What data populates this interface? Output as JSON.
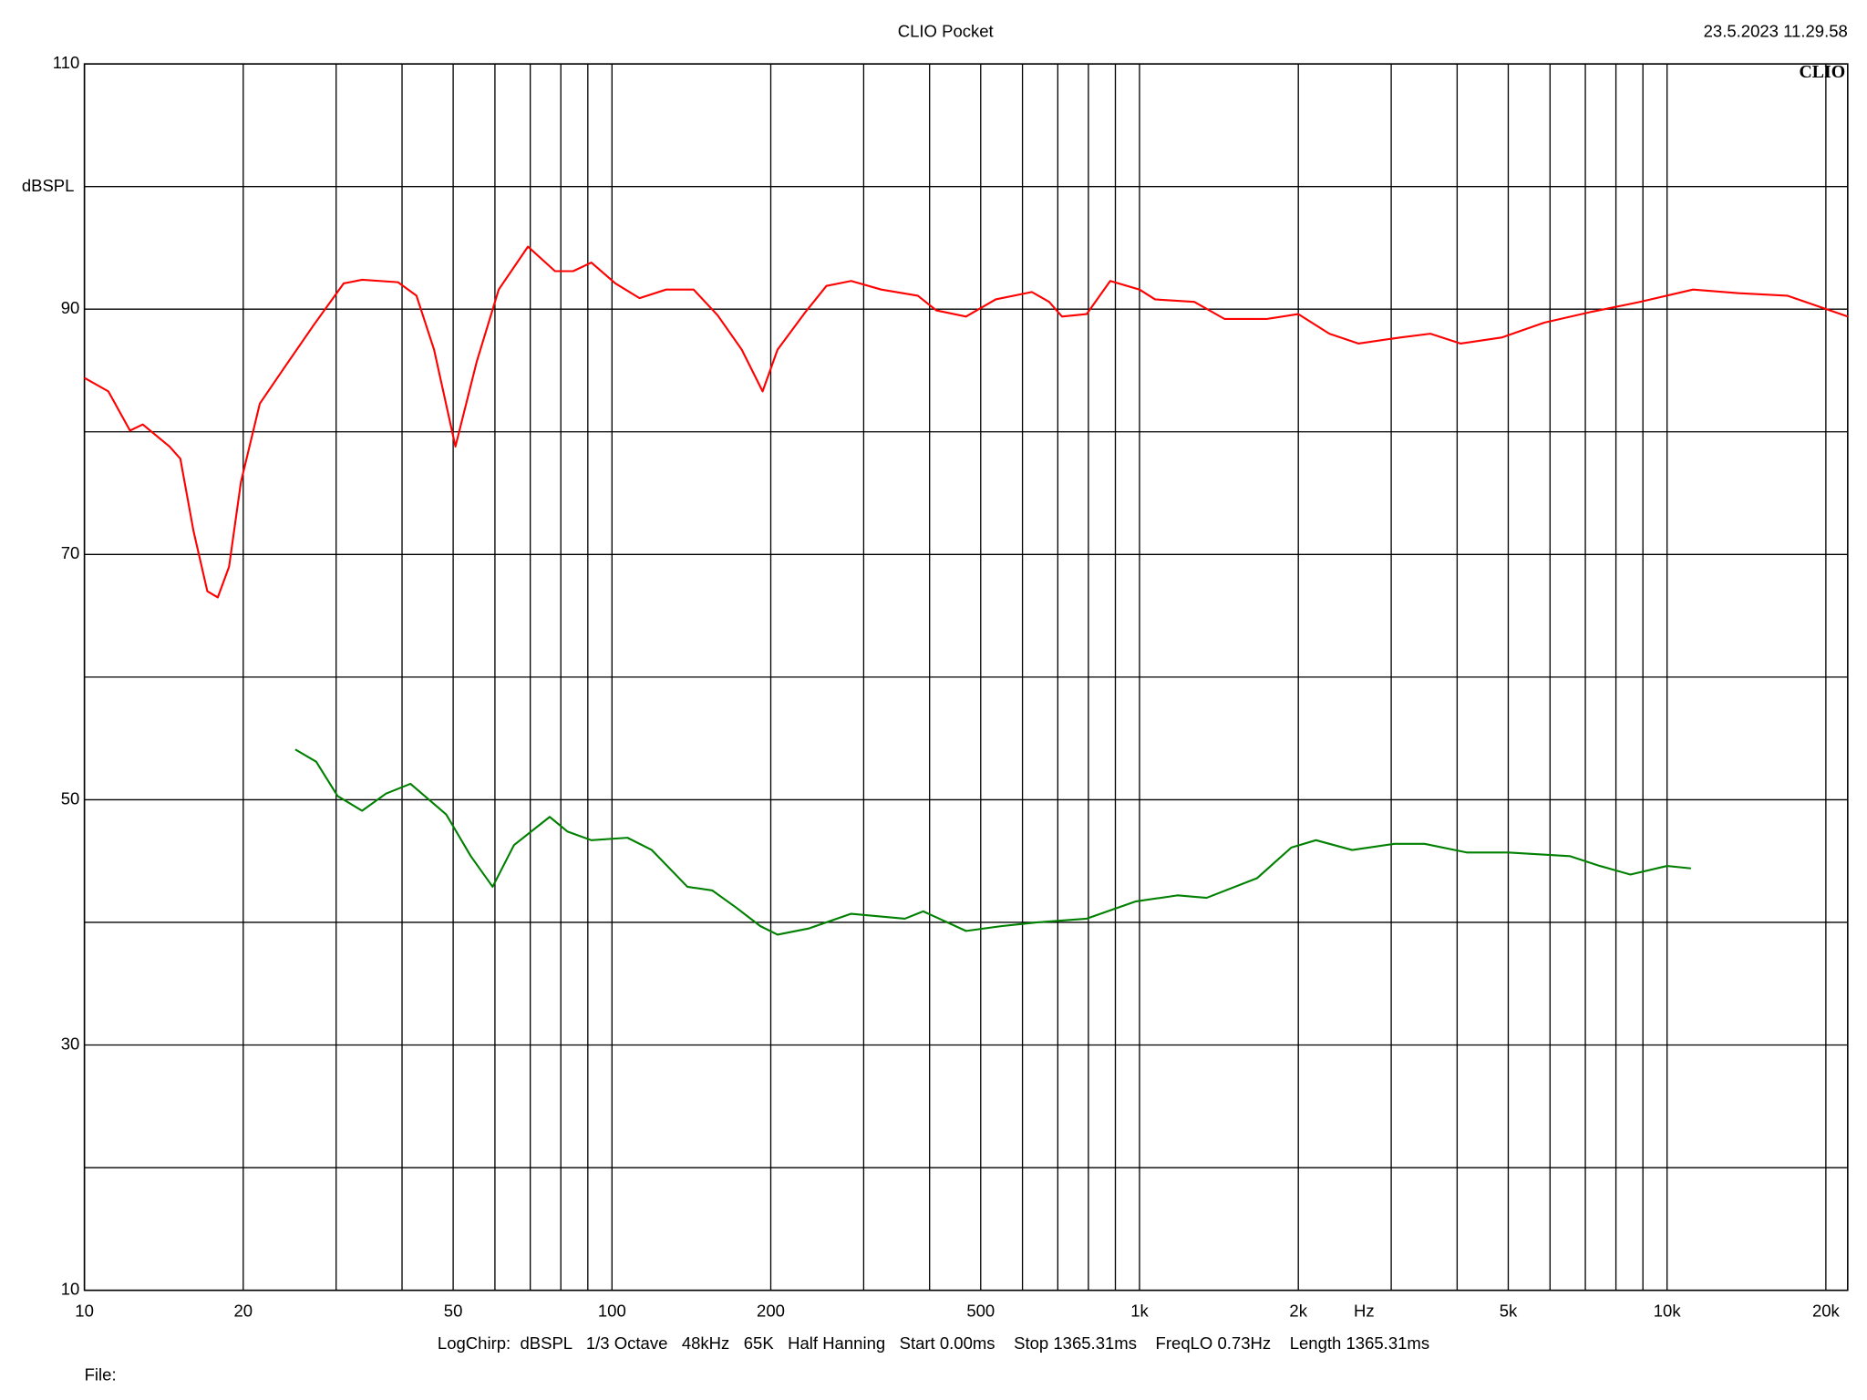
{
  "chart_data": {
    "type": "line",
    "title": "CLIO Pocket",
    "timestamp": "23.5.2023 11.29.58",
    "logo": "CLIO",
    "y_label": "dBSPL",
    "x_label": "Hz",
    "settings": "LogChirp:  dBSPL   1/3 Octave   48kHz   65K   Half Hanning   Start 0.00ms    Stop 1365.31ms    FreqLO 0.73Hz    Length 1365.31ms",
    "file_label": "File:",
    "x_log": true,
    "xlim": [
      10,
      22000
    ],
    "ylim": [
      10,
      110
    ],
    "xticks": [
      10,
      20,
      50,
      100,
      200,
      500,
      {
        "value": 1000,
        "label": "1k"
      },
      {
        "value": 2000,
        "label": "2k"
      },
      {
        "value": 5000,
        "label": "5k"
      },
      {
        "value": 10000,
        "label": "10k"
      },
      {
        "value": 20000,
        "label": "20k"
      }
    ],
    "xgrid": [
      30,
      40,
      60,
      70,
      80,
      90,
      300,
      400,
      600,
      700,
      800,
      900,
      3000,
      4000,
      6000,
      7000,
      8000,
      9000
    ],
    "yticks": [
      10,
      30,
      50,
      70,
      90,
      110
    ],
    "ygrid": [
      20,
      40,
      60,
      80,
      100
    ],
    "grid": true,
    "series": [
      {
        "color": "#ff0000",
        "x": [
          10,
          11.1,
          12.2,
          12.9,
          14.5,
          15.2,
          16.1,
          17.1,
          17.9,
          18.8,
          19.8,
          21.5,
          23.9,
          27.2,
          31,
          33.6,
          39.3,
          42.6,
          46,
          50.5,
          55.4,
          61,
          69.3,
          78,
          84.4,
          91.4,
          101.5,
          112.8,
          126.7,
          142.8,
          158.6,
          176.2,
          193,
          206,
          233,
          255,
          284,
          324,
          380,
          412,
          469,
          534,
          625,
          674,
          713,
          794,
          880,
          1000,
          1070,
          1270,
          1450,
          1740,
          2000,
          2290,
          2600,
          3130,
          3560,
          4060,
          4870,
          5850,
          7220,
          8900,
          11200,
          13700,
          16900,
          22000
        ],
        "values": [
          84.4,
          83.3,
          80.1,
          80.6,
          78.8,
          77.8,
          71.9,
          67.0,
          66.5,
          69.0,
          75.9,
          82.3,
          85.2,
          88.7,
          92.1,
          92.4,
          92.2,
          91.1,
          86.7,
          78.8,
          85.7,
          91.6,
          95.1,
          93.1,
          93.1,
          93.8,
          92.1,
          90.9,
          91.6,
          91.6,
          89.5,
          86.7,
          83.3,
          86.7,
          89.8,
          91.9,
          92.3,
          91.6,
          91.1,
          89.9,
          89.4,
          90.8,
          91.4,
          90.6,
          89.4,
          89.6,
          92.3,
          91.6,
          90.8,
          90.6,
          89.2,
          89.2,
          89.6,
          88.0,
          87.2,
          87.7,
          88.0,
          87.2,
          87.7,
          88.9,
          89.8,
          90.6,
          91.6,
          91.3,
          91.1,
          89.4
        ]
      },
      {
        "color": "#008000",
        "x": [
          25.1,
          27.5,
          30.2,
          33.6,
          37.3,
          41.5,
          48.5,
          54,
          59.4,
          65.2,
          76.2,
          82.4,
          91.4,
          107,
          119,
          139,
          155,
          172,
          191,
          206,
          236,
          284,
          359,
          389,
          469,
          549,
          640,
          794,
          982,
          1180,
          1340,
          1670,
          1940,
          2160,
          2530,
          3040,
          3470,
          4170,
          5000,
          6540,
          7460,
          8520,
          10000,
          11100
        ],
        "values": [
          54.1,
          53.1,
          50.3,
          49.1,
          50.5,
          51.3,
          48.8,
          45.4,
          42.9,
          46.3,
          48.6,
          47.4,
          46.7,
          46.9,
          45.9,
          42.9,
          42.6,
          41.2,
          39.7,
          39.0,
          39.5,
          40.7,
          40.3,
          40.9,
          39.3,
          39.7,
          40.0,
          40.3,
          41.7,
          42.2,
          42.0,
          43.6,
          46.1,
          46.7,
          45.9,
          46.4,
          46.4,
          45.7,
          45.7,
          45.4,
          44.6,
          43.9,
          44.6,
          44.4
        ]
      }
    ]
  }
}
